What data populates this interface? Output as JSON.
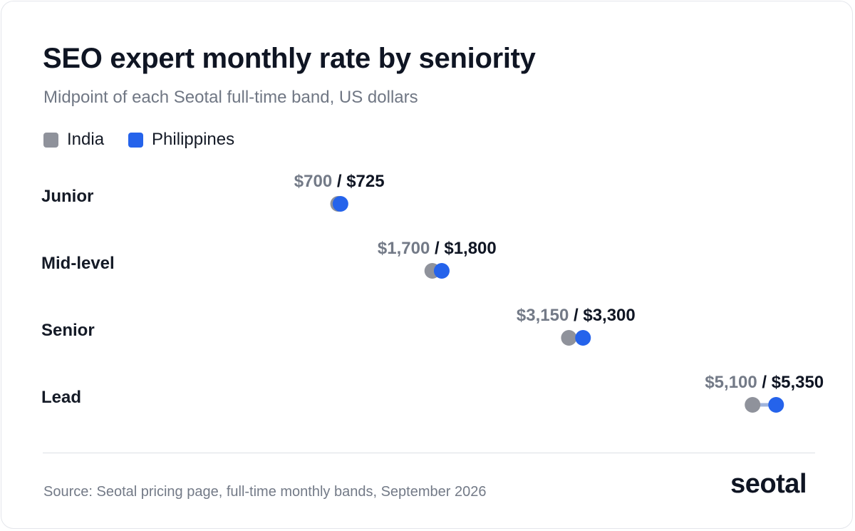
{
  "header": {
    "title": "SEO expert monthly rate by seniority",
    "subtitle": "Midpoint of each Seotal full-time band, US dollars"
  },
  "legend": {
    "india_label": "India",
    "philippines_label": "Philippines"
  },
  "colors": {
    "india": "#8f929b",
    "philippines": "#2563eb",
    "connector": "#9fb4dc",
    "row_label": "#141a26",
    "value_secondary": "#737a87",
    "value_primary": "#0f1523"
  },
  "chart_data": {
    "type": "dot",
    "subtype": "dumbbell",
    "title": "SEO expert monthly rate by seniority",
    "subtitle": "Midpoint of each Seotal full-time band, US dollars",
    "categories": [
      "Junior",
      "Mid-level",
      "Senior",
      "Lead"
    ],
    "series": [
      {
        "name": "India",
        "values": [
          700,
          1700,
          3150,
          5100
        ]
      },
      {
        "name": "Philippines",
        "values": [
          725,
          1800,
          3300,
          5350
        ]
      }
    ],
    "value_labels": [
      {
        "india": "$700",
        "separator": " / ",
        "philippines": "$725"
      },
      {
        "india": "$1,700",
        "separator": " / ",
        "philippines": "$1,800"
      },
      {
        "india": "$3,150",
        "separator": " / ",
        "philippines": "$3,300"
      },
      {
        "india": "$5,100",
        "separator": " / ",
        "philippines": "$5,350"
      }
    ],
    "axis_visible": false,
    "grid": false,
    "legend_position": "top-left"
  },
  "footer": {
    "source": "Source: Seotal pricing page, full-time monthly bands, September 2026",
    "logo_text": "seotal"
  }
}
